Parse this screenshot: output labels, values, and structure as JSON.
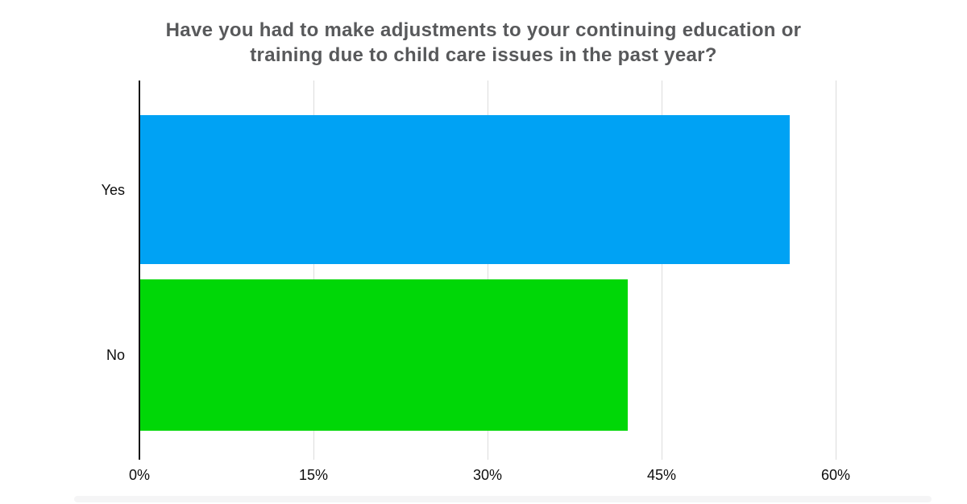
{
  "title": {
    "line1": "Have you had to make adjustments to your continuing education or",
    "line2": "training due to child care issues in the past year?"
  },
  "chart_data": {
    "type": "bar",
    "orientation": "horizontal",
    "title": "Have you had to make adjustments to your continuing education or training due to child care issues in the past year?",
    "categories": [
      "Yes",
      "No"
    ],
    "values": [
      56,
      42
    ],
    "unit": "%",
    "xlabel": "",
    "ylabel": "",
    "xlim": [
      0,
      60
    ],
    "x_ticks": [
      "0%",
      "15%",
      "30%",
      "45%",
      "60%"
    ],
    "x_tick_values": [
      0,
      15,
      30,
      45,
      60
    ],
    "grid": true,
    "legend": false,
    "bar_colors": [
      "#00a2f4",
      "#00d707"
    ],
    "colors": {
      "title_text": "#58595b",
      "axis_line": "#141414",
      "gridline": "#dcdcdc",
      "label_text": "#0d0d0d",
      "background": "#ffffff",
      "bottom_strip": "#f5f5f6"
    }
  }
}
